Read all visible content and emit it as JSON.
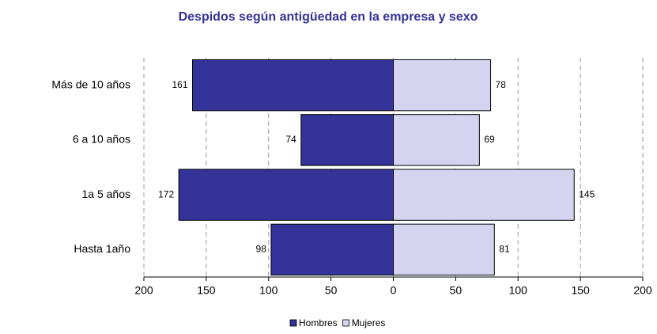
{
  "chart_data": {
    "type": "bar",
    "orientation": "horizontal",
    "stacked": true,
    "title": "Despidos según antigüedad en la empresa y sexo",
    "categories": [
      "Más de 10 años",
      "6 a 10 años",
      "1a 5 años",
      "Hasta 1año"
    ],
    "series": [
      {
        "name": "Hombres",
        "color": "#333399",
        "values": [
          -161,
          -74,
          -172,
          -98
        ],
        "value_labels": [
          "161",
          "74",
          "172",
          "98"
        ]
      },
      {
        "name": "Mujeres",
        "color": "#d4d4f0",
        "values": [
          78,
          69,
          145,
          81
        ]
      }
    ],
    "xlim": [
      -200,
      200
    ],
    "xticks": [
      {
        "value": -200,
        "label": "200"
      },
      {
        "value": -150,
        "label": "150"
      },
      {
        "value": -100,
        "label": "100"
      },
      {
        "value": -50,
        "label": "50"
      },
      0,
      50,
      100,
      150,
      200
    ],
    "grid": true,
    "legend": "bottom"
  }
}
